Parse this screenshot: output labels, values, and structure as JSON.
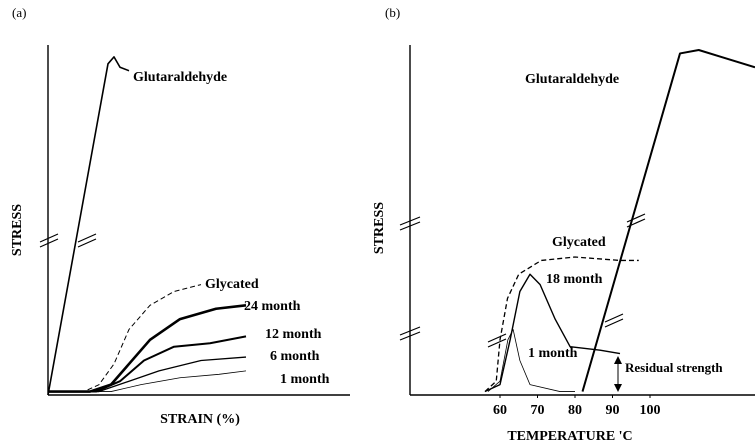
{
  "chart_data": [
    {
      "type": "line",
      "panel": "(a)",
      "xlabel": "STRAIN (%)",
      "ylabel": "STRESS",
      "xlim": [
        0,
        100
      ],
      "ylim": [
        0,
        100
      ],
      "series": [
        {
          "name": "Glutaraldehyde",
          "color": "#000000",
          "line_width": 1.6,
          "dashed": false,
          "x": [
            0,
            20,
            22,
            24,
            27
          ],
          "values": [
            0,
            96,
            98,
            95,
            94
          ]
        },
        {
          "name": "Glycated",
          "color": "#000000",
          "line_width": 1,
          "dashed": true,
          "x": [
            0,
            12,
            17,
            22,
            27,
            34,
            42,
            51
          ],
          "values": [
            1,
            1,
            3,
            9,
            19,
            26,
            30,
            32
          ]
        },
        {
          "name": "24 month",
          "color": "#000000",
          "line_width": 2.6,
          "dashed": false,
          "x": [
            0,
            14,
            21,
            27,
            34,
            44,
            56,
            66
          ],
          "values": [
            1,
            1,
            3,
            9,
            16,
            22,
            25,
            26
          ]
        },
        {
          "name": "12 month",
          "color": "#000000",
          "line_width": 2,
          "dashed": false,
          "x": [
            0,
            16,
            24,
            32,
            42,
            54,
            66
          ],
          "values": [
            1,
            1,
            4,
            10,
            14,
            15,
            17
          ]
        },
        {
          "name": "6 month",
          "color": "#000000",
          "line_width": 1.3,
          "dashed": false,
          "x": [
            0,
            17,
            27,
            37,
            51,
            66
          ],
          "values": [
            1,
            1,
            4,
            7,
            10,
            11
          ]
        },
        {
          "name": "1 month",
          "color": "#000000",
          "line_width": 0.8,
          "dashed": false,
          "x": [
            0,
            21,
            31,
            44,
            57,
            66
          ],
          "values": [
            1,
            1,
            3,
            5,
            6,
            7
          ]
        }
      ]
    },
    {
      "type": "line",
      "panel": "(b)",
      "xlabel": "TEMPERATURE 'C",
      "ylabel": "STRESS",
      "xlim": [
        36,
        128
      ],
      "ylim": [
        0,
        100
      ],
      "xticks": [
        60,
        70,
        80,
        90,
        100
      ],
      "annotation": "Residual strength",
      "series": [
        {
          "name": "Glutaraldehyde",
          "color": "#000000",
          "line_width": 2,
          "dashed": false,
          "x": [
            82,
            108,
            113,
            119,
            128
          ],
          "values": [
            1,
            99,
            100,
            98,
            95
          ]
        },
        {
          "name": "Glycated",
          "color": "#000000",
          "line_width": 1.3,
          "dashed": true,
          "x": [
            56,
            59,
            60,
            62,
            65,
            71,
            80,
            92,
            97
          ],
          "values": [
            1,
            4,
            16,
            28,
            35,
            39,
            40,
            39,
            39
          ]
        },
        {
          "name": "18 month",
          "color": "#000000",
          "line_width": 1.4,
          "dashed": false,
          "x": [
            56,
            60,
            62.7,
            65.3,
            68,
            70.7,
            74.7,
            78.7,
            86.7,
            92
          ],
          "values": [
            1,
            3,
            16,
            30,
            35,
            32,
            22,
            14,
            13,
            12
          ]
        },
        {
          "name": "1 month",
          "color": "#000000",
          "line_width": 0.8,
          "dashed": false,
          "x": [
            56.8,
            60,
            62.1,
            63.5,
            65.3,
            68,
            76,
            80
          ],
          "values": [
            1,
            4,
            16,
            19,
            10,
            3,
            1,
            1
          ]
        }
      ]
    }
  ]
}
